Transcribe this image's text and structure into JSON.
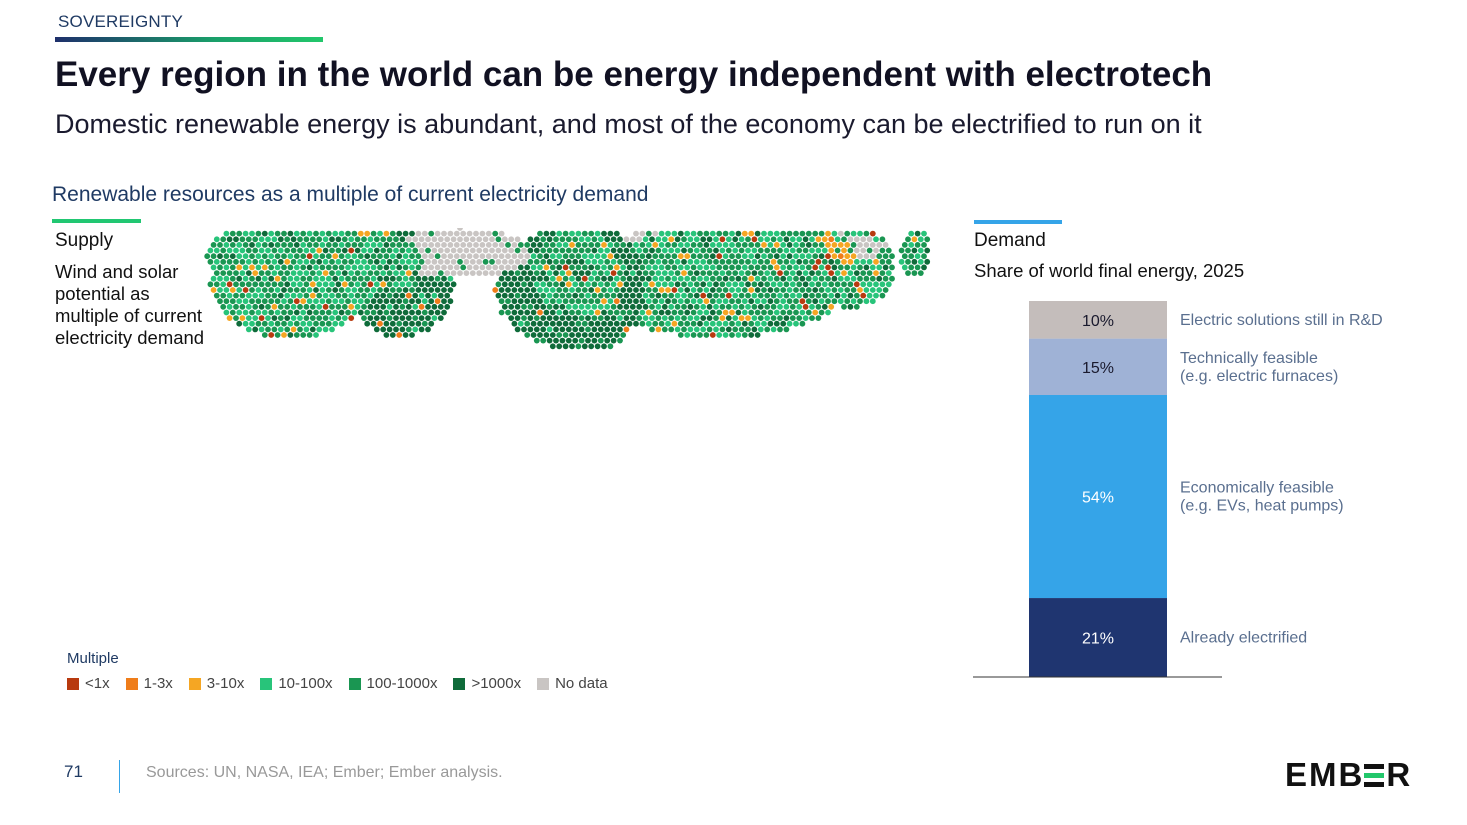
{
  "section": "SOVEREIGNTY",
  "title": "Every region in the world can be energy independent with electrotech",
  "subtitle": "Domestic renewable energy is abundant, and most of the economy can be electrified to run on it",
  "map": {
    "heading": "Renewable resources as a multiple of current electricity demand",
    "panel_label": "Supply",
    "description": "Wind and solar potential as multiple of current electricity demand",
    "legend_title": "Multiple",
    "legend": [
      {
        "label": "<1x",
        "color": "#b83a0f"
      },
      {
        "label": "1-3x",
        "color": "#ef7d1a"
      },
      {
        "label": "3-10x",
        "color": "#f5a623"
      },
      {
        "label": "10-100x",
        "color": "#28c47a"
      },
      {
        "label": "100-1000x",
        "color": "#1a9652"
      },
      {
        "label": ">1000x",
        "color": "#0f6b3a"
      },
      {
        "label": "No data",
        "color": "#c9c5c3"
      }
    ]
  },
  "demand": {
    "panel_label": "Demand",
    "description": "Share of world final energy, 2025"
  },
  "chart_data": {
    "type": "bar",
    "stacked": true,
    "categories": [
      "Share of world final energy, 2025"
    ],
    "unit": "%",
    "series": [
      {
        "name": "Already electrified",
        "values": [
          21
        ],
        "label": "21%",
        "color": "#1f3570"
      },
      {
        "name": "Economically feasible\n(e.g. EVs, heat pumps)",
        "values": [
          54
        ],
        "label": "54%",
        "color": "#35a4e8"
      },
      {
        "name": "Technically feasible\n(e.g. electric furnaces)",
        "values": [
          15
        ],
        "label": "15%",
        "color": "#9fb2d6"
      },
      {
        "name": "Electric solutions still in R&D",
        "values": [
          10
        ],
        "label": "10%",
        "color": "#c4bdbb"
      }
    ],
    "ylim": [
      0,
      100
    ]
  },
  "footer": {
    "page": "71",
    "sources": "Sources: UN, NASA, IEA; Ember; Ember analysis.",
    "logo": "EMBER"
  }
}
